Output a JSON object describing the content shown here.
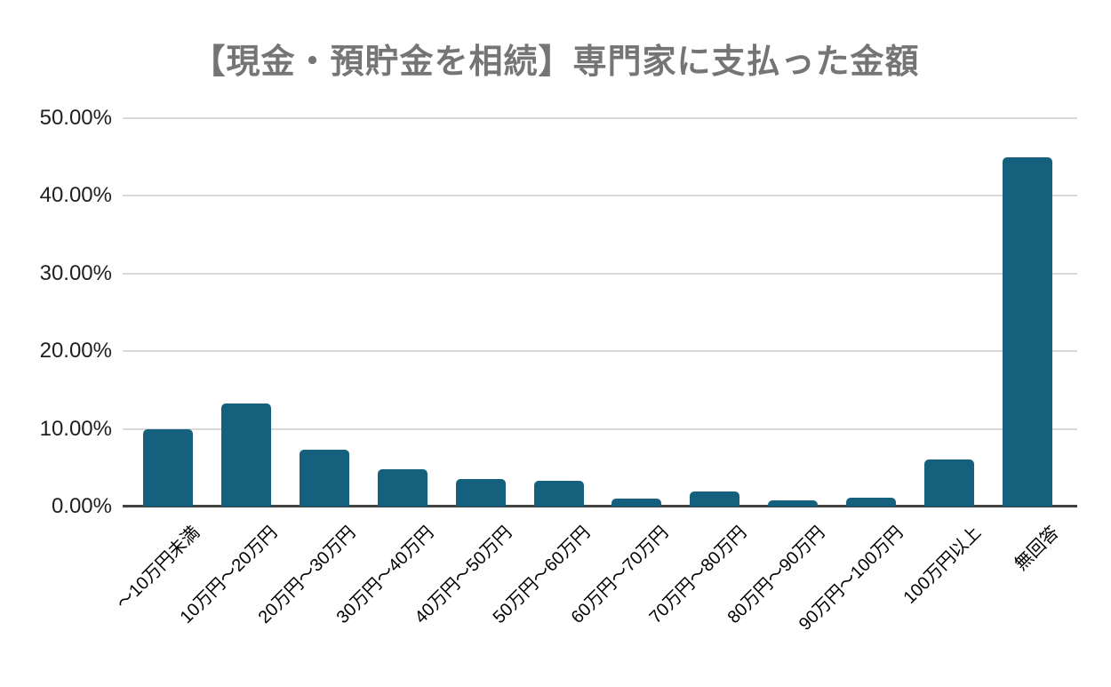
{
  "title": "【現金・預貯金を相続】専門家に支払った金額",
  "colors": {
    "background": "#ffffff",
    "bar": "#15607d",
    "title": "#757575",
    "gridline": "#d9d9d9",
    "axis_line": "#424242",
    "y_tick_text": "#1f1f1f",
    "x_tick_text": "#000000"
  },
  "chart_data": {
    "type": "bar",
    "title": "【現金・預貯金を相続】専門家に支払った金額",
    "categories": [
      "～10万円未満",
      "10万円～20万円",
      "20万円～30万円",
      "30万円～40万円",
      "40万円～50万円",
      "50万円～60万円",
      "60万円～70万円",
      "70万円～80万円",
      "80万円～90万円",
      "90万円～100万円",
      "100万円以上",
      "無回答"
    ],
    "values": [
      10.0,
      13.3,
      7.3,
      4.8,
      3.6,
      3.3,
      1.0,
      2.0,
      0.8,
      1.1,
      6.1,
      45.0
    ],
    "xlabel": "",
    "ylabel": "",
    "ylim": [
      0,
      50
    ],
    "ytick_step": 10,
    "ytick_labels": [
      "0.00%",
      "10.00%",
      "20.00%",
      "30.00%",
      "40.00%",
      "50.00%"
    ],
    "grid": true,
    "legend": "none",
    "x_label_rotation_deg": 45,
    "bar_color": "#15607d"
  }
}
